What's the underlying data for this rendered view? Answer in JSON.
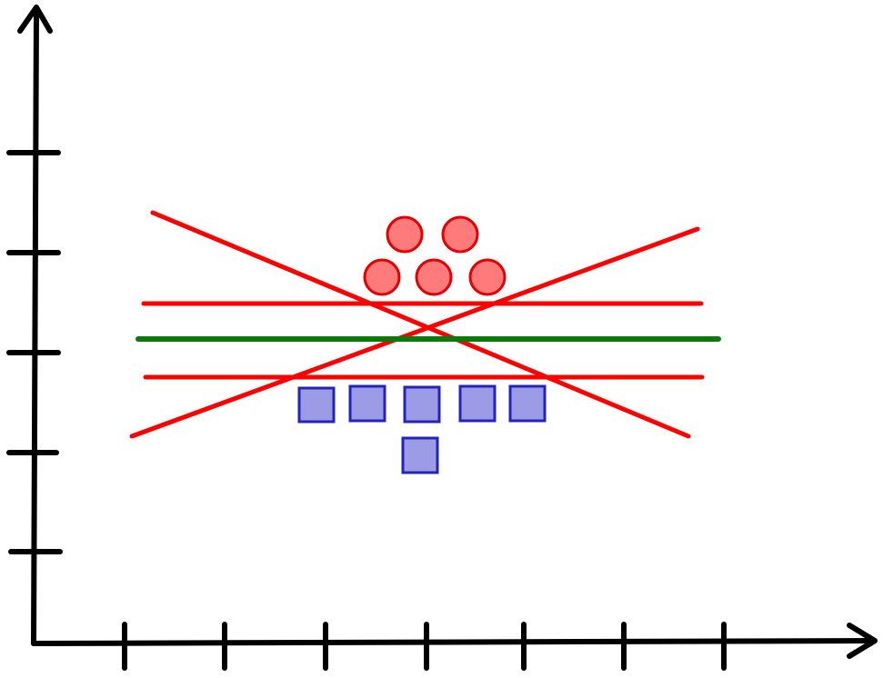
{
  "diagram": {
    "type": "classification-margin-illustration",
    "axes": {
      "x_ticks": 7,
      "y_ticks": 5,
      "color": "#000000",
      "arrowheads": true
    },
    "classes": [
      {
        "name": "",
        "shape": "circle",
        "fill": "#ff7b7b",
        "stroke": "#e20000",
        "count": 5
      },
      {
        "name": "",
        "shape": "square",
        "fill": "#9b9be6",
        "stroke": "#2323bd",
        "count": 6
      }
    ],
    "lines": [
      {
        "role": "optimal-separator",
        "color": "#0b7a0b",
        "orientation": "horizontal"
      },
      {
        "role": "margin-upper",
        "color": "#ff0000",
        "orientation": "horizontal"
      },
      {
        "role": "margin-lower",
        "color": "#ff0000",
        "orientation": "horizontal"
      },
      {
        "role": "alternative-separator-descending",
        "color": "#ff0000",
        "orientation": "diagonal"
      },
      {
        "role": "alternative-separator-ascending",
        "color": "#ff0000",
        "orientation": "diagonal"
      }
    ]
  }
}
